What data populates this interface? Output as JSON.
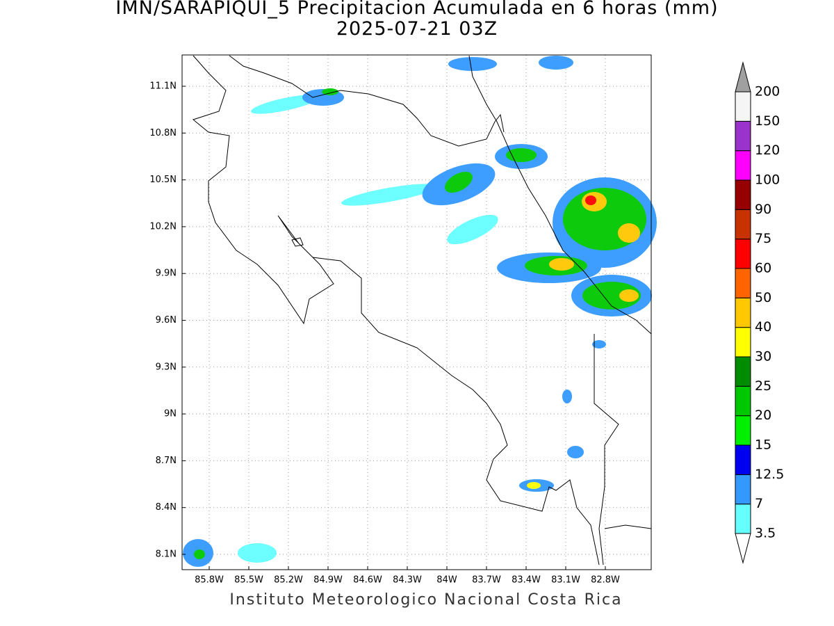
{
  "header": {
    "title": "IMN/SARAPIQUI_5 Precipitacion Acumulada en 6 horas (mm)",
    "subtitle": "2025-07-21 03Z"
  },
  "map": {
    "lon_ticks": [
      "85.8W",
      "85.5W",
      "85.2W",
      "84.9W",
      "84.6W",
      "84.3W",
      "84W",
      "83.7W",
      "83.4W",
      "83.1W",
      "82.8W"
    ],
    "lat_ticks": [
      "11.1N",
      "10.8N",
      "10.5N",
      "10.2N",
      "9.9N",
      "9.6N",
      "9.3N",
      "9N",
      "8.7N",
      "8.4N",
      "8.1N"
    ]
  },
  "colorbar": {
    "labels": [
      "3.5",
      "7",
      "12.5",
      "15",
      "20",
      "25",
      "30",
      "40",
      "50",
      "60",
      "75",
      "90",
      "100",
      "120",
      "150",
      "200"
    ],
    "colors": [
      "#66ffff",
      "#3399ff",
      "#0000f0",
      "#00f000",
      "#00c800",
      "#008c00",
      "#ffff00",
      "#ffc800",
      "#ff6400",
      "#ff0000",
      "#c83200",
      "#960000",
      "#ff00ff",
      "#9933cc",
      "#f5f5f5"
    ],
    "over_color": "#a0a0a0",
    "under_color": "#ffffff"
  },
  "footer": "Instituto Meteorologico Nacional Costa Rica"
}
